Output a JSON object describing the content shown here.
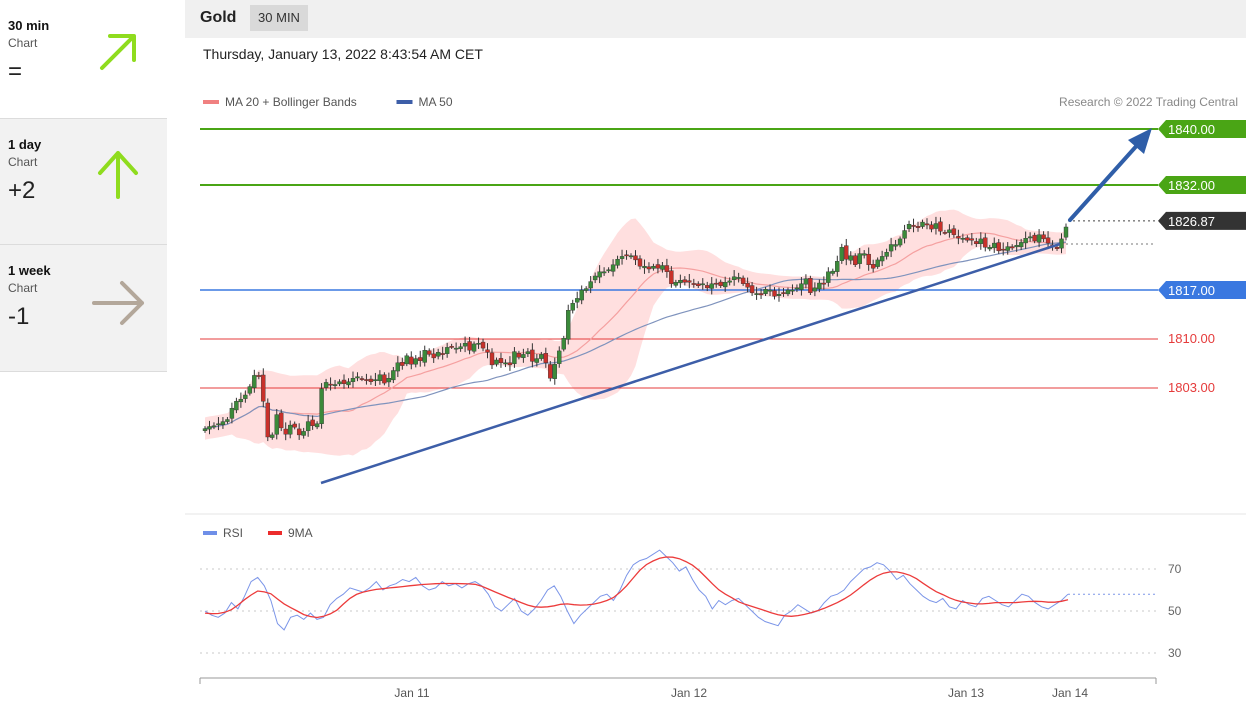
{
  "sidebar": {
    "cards": [
      {
        "period": "30 min",
        "sub": "Chart",
        "score": "=",
        "arrow": "up-right",
        "color": "#8fdc1e"
      },
      {
        "period": "1 day",
        "sub": "Chart",
        "score": "+2",
        "arrow": "up",
        "color": "#8fdc1e"
      },
      {
        "period": "1 week",
        "sub": "Chart",
        "score": "-1",
        "arrow": "right",
        "color": "#b3a79a"
      }
    ]
  },
  "header": {
    "asset": "Gold",
    "timeframe": "30 MIN"
  },
  "datetime": "Thursday, January 13, 2022 8:43:54 AM CET",
  "chart_data": [
    {
      "type": "candlestick",
      "legend": [
        {
          "name": "MA 20 + Bollinger Bands",
          "color": "#f08080"
        },
        {
          "name": "MA 50",
          "color": "#3d5ea8"
        }
      ],
      "credit": "Research © 2022 Trading Central",
      "price_axis": {
        "min": 1790,
        "max": 1845
      },
      "x_ticks": [
        "Jan 11",
        "Jan 12",
        "Jan 13",
        "Jan 14"
      ],
      "levels": [
        {
          "value": 1840.0,
          "label": "1840.00",
          "color": "#4aa515",
          "kind": "resistance"
        },
        {
          "value": 1832.0,
          "label": "1832.00",
          "color": "#4aa515",
          "kind": "resistance"
        },
        {
          "value": 1826.87,
          "label": "1826.87",
          "color": "#333333",
          "kind": "last-price"
        },
        {
          "value": 1817.0,
          "label": "1817.00",
          "color": "#3a78e0",
          "kind": "pivot"
        },
        {
          "value": 1810.0,
          "label": "1810.00",
          "color": "#e53b3b",
          "kind": "support"
        },
        {
          "value": 1803.0,
          "label": "1803.00",
          "color": "#e53b3b",
          "kind": "support"
        }
      ],
      "close": [
        1797.2,
        1797.5,
        1797.6,
        1797.9,
        1798.2,
        1798.5,
        1800.1,
        1801.1,
        1801.4,
        1802.0,
        1803.2,
        1804.8,
        1804.7,
        1801.1,
        1796.0,
        1796.3,
        1799.2,
        1797.3,
        1796.4,
        1797.7,
        1797.4,
        1796.3,
        1796.8,
        1798.2,
        1797.6,
        1797.9,
        1802.9,
        1803.8,
        1803.5,
        1803.5,
        1803.9,
        1803.6,
        1803.9,
        1804.4,
        1804.6,
        1804.3,
        1804.2,
        1803.9,
        1804.2,
        1804.9,
        1803.7,
        1804.4,
        1805.5,
        1806.6,
        1806.2,
        1807.6,
        1806.4,
        1807.2,
        1806.9,
        1808.4,
        1807.8,
        1807.3,
        1808.1,
        1807.9,
        1808.8,
        1808.9,
        1808.7,
        1808.9,
        1809.4,
        1808.4,
        1809.3,
        1809.4,
        1808.7,
        1808.1,
        1806.3,
        1807.0,
        1806.6,
        1806.6,
        1806.3,
        1808.2,
        1807.4,
        1807.8,
        1808.2,
        1806.8,
        1807.2,
        1807.8,
        1806.6,
        1804.4,
        1806.4,
        1808.3,
        1810.1,
        1814.1,
        1815.1,
        1815.8,
        1817.0,
        1817.2,
        1818.2,
        1819.0,
        1819.6,
        1819.6,
        1819.9,
        1820.6,
        1821.4,
        1821.8,
        1821.9,
        1821.9,
        1821.3,
        1820.4,
        1820.4,
        1820.0,
        1820.4,
        1820.1,
        1820.5,
        1819.6,
        1817.9,
        1818.1,
        1818.4,
        1818.1,
        1818.1,
        1817.9,
        1817.6,
        1817.9,
        1817.3,
        1817.9,
        1817.9,
        1817.6,
        1818.1,
        1818.3,
        1818.9,
        1818.8,
        1817.9,
        1817.4,
        1816.6,
        1816.5,
        1816.3,
        1817.1,
        1817.0,
        1816.1,
        1816.4,
        1816.6,
        1817.0,
        1817.0,
        1817.3,
        1817.9,
        1818.6,
        1816.6,
        1817.3,
        1818.0,
        1817.9,
        1819.6,
        1819.7,
        1821.1,
        1823.1,
        1821.4,
        1821.9,
        1820.6,
        1822.2,
        1822.2,
        1820.6,
        1820.1,
        1821.3,
        1821.8,
        1822.4,
        1823.5,
        1823.5,
        1824.3,
        1825.5,
        1826.4,
        1826.1,
        1825.9,
        1826.7,
        1826.4,
        1825.7,
        1826.5,
        1825.4,
        1825.2,
        1825.6,
        1824.9,
        1824.4,
        1824.4,
        1824.1,
        1824.1,
        1823.6,
        1824.3,
        1823.1,
        1823.1,
        1823.7,
        1822.6,
        1822.8,
        1823.2,
        1823.0,
        1823.4,
        1823.8,
        1824.4,
        1824.6,
        1824.0,
        1824.9,
        1824.3,
        1823.7,
        1823.2,
        1822.9,
        1824.3,
        1826.0
      ]
    },
    {
      "type": "line",
      "legend": [
        {
          "name": "RSI",
          "color": "#6f8fe8"
        },
        {
          "name": "9MA",
          "color": "#ec2c2c"
        }
      ],
      "y_ticks": [
        70,
        50,
        30
      ],
      "ylim": [
        20,
        90
      ],
      "rsi": [
        50,
        48,
        47,
        49,
        54,
        51,
        57,
        64,
        66,
        62,
        55,
        44,
        41,
        47,
        48,
        46,
        49,
        46,
        47,
        53,
        56,
        58,
        61,
        60,
        59,
        61,
        64,
        60,
        62,
        63,
        65,
        64,
        66,
        62,
        60,
        61,
        64,
        62,
        63,
        61,
        63,
        64,
        62,
        58,
        52,
        50,
        53,
        56,
        50,
        48,
        51,
        55,
        60,
        62,
        57,
        50,
        44,
        48,
        51,
        54,
        57,
        58,
        55,
        60,
        67,
        72,
        74,
        75,
        77,
        79,
        76,
        73,
        69,
        71,
        65,
        60,
        57,
        51,
        55,
        53,
        55,
        56,
        53,
        50,
        47,
        45,
        44,
        43,
        48,
        50,
        53,
        51,
        49,
        50,
        54,
        57,
        58,
        60,
        64,
        67,
        70,
        71,
        73,
        72,
        69,
        65,
        67,
        63,
        60,
        57,
        55,
        54,
        56,
        52,
        51,
        55,
        53,
        52,
        56,
        57,
        55,
        53,
        52,
        55,
        58,
        57,
        54,
        52,
        51,
        53,
        55,
        58
      ],
      "ma9": [
        49,
        48.7,
        48.8,
        49.4,
        50.6,
        52.8,
        55.4,
        57.6,
        59.5,
        59.1,
        58.2,
        55.7,
        53.4,
        51.6,
        50.0,
        48.3,
        47.4,
        46.9,
        47.5,
        48.6,
        50.4,
        53.3,
        56.0,
        57.9,
        59.0,
        59.7,
        60.3,
        60.6,
        61.0,
        61.3,
        61.6,
        62.0,
        62.3,
        62.6,
        62.8,
        63.0,
        63.1,
        63.1,
        63.1,
        63.0,
        62.9,
        62.7,
        61.8,
        60.5,
        59.1,
        57.8,
        56.5,
        55.3,
        54.0,
        52.8,
        52.0,
        51.8,
        52.0,
        52.5,
        53.2,
        53.4,
        53.0,
        52.8,
        52.9,
        53.3,
        54.0,
        55.0,
        56.4,
        58.9,
        62.0,
        65.7,
        69.4,
        72.1,
        73.8,
        75.1,
        75.7,
        75.6,
        74.9,
        73.5,
        71.8,
        69.3,
        66.2,
        63.0,
        60.1,
        58.0,
        56.3,
        54.4,
        53.2,
        52.2,
        51.2,
        50.2,
        49.1,
        48.2,
        47.7,
        47.5,
        47.8,
        48.4,
        49.2,
        50.2,
        51.3,
        52.6,
        54.0,
        55.7,
        57.6,
        60.0,
        62.5,
        64.8,
        66.7,
        68.0,
        68.6,
        68.6,
        68.0,
        67.0,
        65.4,
        63.2,
        61.1,
        59.2,
        57.8,
        56.3,
        55.1,
        54.3,
        53.8,
        53.4,
        53.4,
        53.6,
        54.0,
        54.0,
        54.0,
        54.0,
        54.3,
        54.5,
        54.6,
        54.5,
        54.2,
        54.2,
        54.6,
        55.4
      ]
    }
  ]
}
